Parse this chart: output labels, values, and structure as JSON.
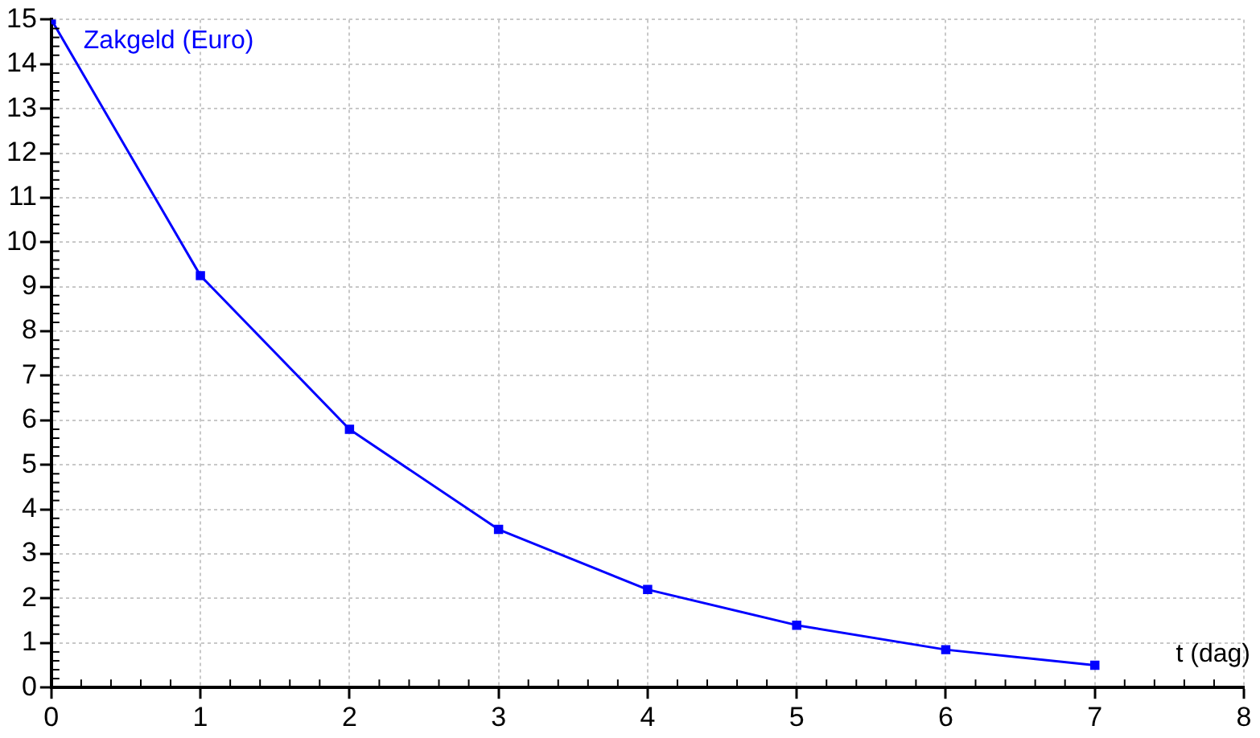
{
  "chart_data": {
    "type": "line",
    "xlabel": "t (dag)",
    "ylabel": "Zakgeld (Euro)",
    "x": [
      0,
      1,
      2,
      3,
      4,
      5,
      6,
      7
    ],
    "series": [
      {
        "color": "#0000ff",
        "values": [
          15,
          9.25,
          5.8,
          3.55,
          2.2,
          1.4,
          0.85,
          0.5
        ]
      }
    ],
    "xlim": [
      0,
      8
    ],
    "xticks": [
      0,
      1,
      2,
      3,
      4,
      5,
      6,
      7,
      8
    ],
    "ylim": [
      0,
      15
    ],
    "yticks": [
      0,
      1,
      2,
      3,
      4,
      5,
      6,
      7,
      8,
      9,
      10,
      11,
      12,
      13,
      14,
      15
    ],
    "grid": true,
    "legend": false,
    "marker": "square",
    "line_style": "solid"
  }
}
